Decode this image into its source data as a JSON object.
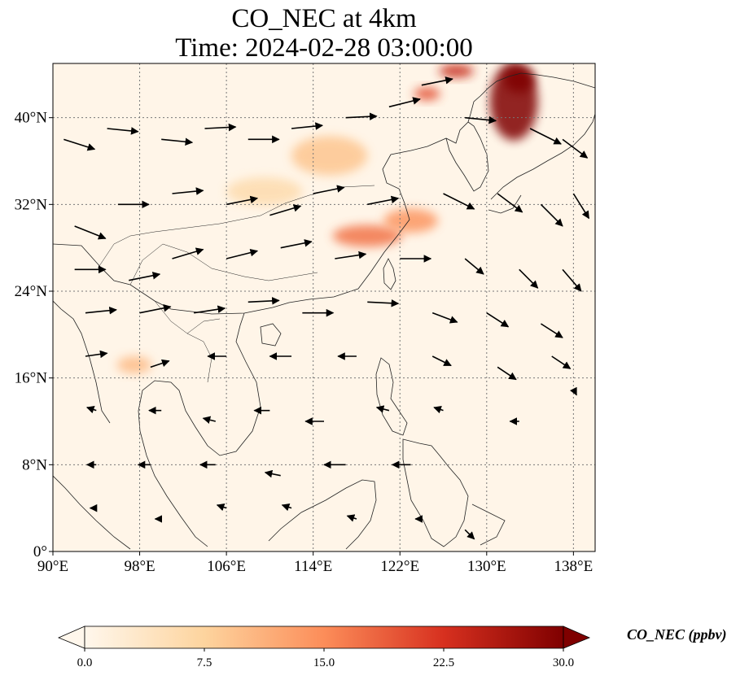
{
  "title": {
    "line1": "CO_NEC at 4km",
    "line2": "Time: 2024-02-28 03:00:00"
  },
  "map": {
    "lon_range": [
      90,
      140
    ],
    "lat_range": [
      0,
      45
    ],
    "lon_ticks": [
      {
        "value": 90,
        "label": "90°E"
      },
      {
        "value": 98,
        "label": "98°E"
      },
      {
        "value": 106,
        "label": "106°E"
      },
      {
        "value": 114,
        "label": "114°E"
      },
      {
        "value": 122,
        "label": "122°E"
      },
      {
        "value": 130,
        "label": "130°E"
      },
      {
        "value": 138,
        "label": "138°E"
      }
    ],
    "lat_ticks": [
      {
        "value": 0,
        "label": "0°"
      },
      {
        "value": 8,
        "label": "8°N"
      },
      {
        "value": 16,
        "label": "16°N"
      },
      {
        "value": 24,
        "label": "24°N"
      },
      {
        "value": 32,
        "label": "32°N"
      },
      {
        "value": 40,
        "label": "40°N"
      }
    ],
    "grid": true,
    "colormap": "OrRd",
    "background_color": "#fff5e8",
    "coastline_color": "#222222",
    "vector_color": "#000000",
    "co_plumes": [
      {
        "lon": 132.5,
        "lat": 41.5,
        "rlon": 2.2,
        "rlat": 3.6,
        "value": 30
      },
      {
        "lon": 133.0,
        "lat": 43.5,
        "rlon": 1.4,
        "rlat": 1.2,
        "value": 30
      },
      {
        "lon": 127.2,
        "lat": 44.3,
        "rlon": 1.6,
        "rlat": 0.6,
        "value": 24
      },
      {
        "lon": 124.5,
        "lat": 42.2,
        "rlon": 1.2,
        "rlat": 0.6,
        "value": 20
      },
      {
        "lon": 119.0,
        "lat": 29.1,
        "rlon": 3.2,
        "rlat": 1.0,
        "value": 17
      },
      {
        "lon": 123.0,
        "lat": 30.5,
        "rlon": 2.5,
        "rlat": 1.1,
        "value": 14
      },
      {
        "lon": 115.5,
        "lat": 36.5,
        "rlon": 3.5,
        "rlat": 1.8,
        "value": 9
      },
      {
        "lon": 109.5,
        "lat": 33.2,
        "rlon": 3.5,
        "rlat": 1.3,
        "value": 6
      },
      {
        "lon": 97.5,
        "lat": 17.2,
        "rlon": 1.6,
        "rlat": 0.8,
        "value": 10
      }
    ],
    "wind_vectors": [
      {
        "lon": 91,
        "lat": 38,
        "u": 1.0,
        "v": -0.32
      },
      {
        "lon": 95,
        "lat": 39,
        "u": 1.0,
        "v": -0.1
      },
      {
        "lon": 100,
        "lat": 38,
        "u": 1.0,
        "v": -0.1
      },
      {
        "lon": 104,
        "lat": 39,
        "u": 1.0,
        "v": 0.05
      },
      {
        "lon": 108,
        "lat": 38,
        "u": 1.0,
        "v": 0.0
      },
      {
        "lon": 112,
        "lat": 39,
        "u": 1.0,
        "v": 0.1
      },
      {
        "lon": 117,
        "lat": 40,
        "u": 1.0,
        "v": 0.05
      },
      {
        "lon": 121,
        "lat": 41,
        "u": 1.0,
        "v": 0.25
      },
      {
        "lon": 124,
        "lat": 43,
        "u": 1.0,
        "v": 0.2
      },
      {
        "lon": 128,
        "lat": 40,
        "u": 1.0,
        "v": -0.1
      },
      {
        "lon": 134,
        "lat": 39,
        "u": 1.0,
        "v": -0.5
      },
      {
        "lon": 137,
        "lat": 38,
        "u": 0.8,
        "v": -0.6
      },
      {
        "lon": 92,
        "lat": 30,
        "u": 1.0,
        "v": -0.4
      },
      {
        "lon": 96,
        "lat": 32,
        "u": 1.0,
        "v": 0.0
      },
      {
        "lon": 101,
        "lat": 33,
        "u": 1.0,
        "v": 0.1
      },
      {
        "lon": 106,
        "lat": 32,
        "u": 1.0,
        "v": 0.2
      },
      {
        "lon": 110,
        "lat": 31,
        "u": 1.0,
        "v": 0.3
      },
      {
        "lon": 114,
        "lat": 33,
        "u": 1.0,
        "v": 0.2
      },
      {
        "lon": 119,
        "lat": 32,
        "u": 1.0,
        "v": 0.2
      },
      {
        "lon": 126,
        "lat": 33,
        "u": 1.0,
        "v": -0.5
      },
      {
        "lon": 131,
        "lat": 33,
        "u": 0.8,
        "v": -0.6
      },
      {
        "lon": 135,
        "lat": 32,
        "u": 0.7,
        "v": -0.7
      },
      {
        "lon": 138,
        "lat": 33,
        "u": 0.5,
        "v": -0.8
      },
      {
        "lon": 92,
        "lat": 26,
        "u": 1.0,
        "v": 0.0
      },
      {
        "lon": 97,
        "lat": 25,
        "u": 1.0,
        "v": 0.2
      },
      {
        "lon": 101,
        "lat": 27,
        "u": 1.0,
        "v": 0.3
      },
      {
        "lon": 106,
        "lat": 27,
        "u": 1.0,
        "v": 0.25
      },
      {
        "lon": 111,
        "lat": 28,
        "u": 1.0,
        "v": 0.2
      },
      {
        "lon": 116,
        "lat": 27,
        "u": 1.0,
        "v": 0.15
      },
      {
        "lon": 122,
        "lat": 27,
        "u": 1.0,
        "v": 0.0
      },
      {
        "lon": 128,
        "lat": 27,
        "u": 0.6,
        "v": -0.5
      },
      {
        "lon": 133,
        "lat": 26,
        "u": 0.6,
        "v": -0.6
      },
      {
        "lon": 137,
        "lat": 26,
        "u": 0.6,
        "v": -0.7
      },
      {
        "lon": 93,
        "lat": 22,
        "u": 1.0,
        "v": 0.1
      },
      {
        "lon": 98,
        "lat": 22,
        "u": 1.0,
        "v": 0.2
      },
      {
        "lon": 103,
        "lat": 22,
        "u": 1.0,
        "v": 0.15
      },
      {
        "lon": 108,
        "lat": 23,
        "u": 1.0,
        "v": 0.05
      },
      {
        "lon": 113,
        "lat": 22,
        "u": 1.0,
        "v": 0.0
      },
      {
        "lon": 119,
        "lat": 23,
        "u": 1.0,
        "v": -0.05
      },
      {
        "lon": 125,
        "lat": 22,
        "u": 0.8,
        "v": -0.3
      },
      {
        "lon": 130,
        "lat": 22,
        "u": 0.7,
        "v": -0.45
      },
      {
        "lon": 135,
        "lat": 21,
        "u": 0.7,
        "v": -0.45
      },
      {
        "lon": 93,
        "lat": 18,
        "u": 0.7,
        "v": 0.1
      },
      {
        "lon": 99,
        "lat": 17,
        "u": 0.6,
        "v": 0.2
      },
      {
        "lon": 106,
        "lat": 18,
        "u": -0.6,
        "v": 0.0
      },
      {
        "lon": 112,
        "lat": 18,
        "u": -0.7,
        "v": 0.0
      },
      {
        "lon": 118,
        "lat": 18,
        "u": -0.6,
        "v": 0.0
      },
      {
        "lon": 125,
        "lat": 18,
        "u": 0.6,
        "v": -0.3
      },
      {
        "lon": 131,
        "lat": 17,
        "u": 0.6,
        "v": -0.4
      },
      {
        "lon": 136,
        "lat": 18,
        "u": 0.6,
        "v": -0.4
      },
      {
        "lon": 94,
        "lat": 13,
        "u": -0.3,
        "v": 0.1
      },
      {
        "lon": 100,
        "lat": 13,
        "u": -0.4,
        "v": 0.0
      },
      {
        "lon": 105,
        "lat": 12,
        "u": -0.4,
        "v": 0.1
      },
      {
        "lon": 110,
        "lat": 13,
        "u": -0.5,
        "v": 0.0
      },
      {
        "lon": 115,
        "lat": 12,
        "u": -0.6,
        "v": 0.0
      },
      {
        "lon": 121,
        "lat": 13,
        "u": -0.4,
        "v": 0.1
      },
      {
        "lon": 126,
        "lat": 13,
        "u": -0.3,
        "v": 0.1
      },
      {
        "lon": 133,
        "lat": 12,
        "u": -0.3,
        "v": 0.0
      },
      {
        "lon": 138,
        "lat": 15,
        "u": 0.1,
        "v": -0.2
      },
      {
        "lon": 94,
        "lat": 8,
        "u": -0.3,
        "v": 0.0
      },
      {
        "lon": 99,
        "lat": 8,
        "u": -0.4,
        "v": 0.0
      },
      {
        "lon": 105,
        "lat": 8,
        "u": -0.5,
        "v": 0.0
      },
      {
        "lon": 111,
        "lat": 7,
        "u": -0.5,
        "v": 0.1
      },
      {
        "lon": 117,
        "lat": 8,
        "u": -0.7,
        "v": 0.0
      },
      {
        "lon": 123,
        "lat": 8,
        "u": -0.6,
        "v": 0.0
      },
      {
        "lon": 94,
        "lat": 4,
        "u": -0.2,
        "v": 0.0
      },
      {
        "lon": 100,
        "lat": 3,
        "u": -0.2,
        "v": 0.0
      },
      {
        "lon": 106,
        "lat": 4,
        "u": -0.3,
        "v": 0.1
      },
      {
        "lon": 112,
        "lat": 4,
        "u": -0.3,
        "v": 0.1
      },
      {
        "lon": 118,
        "lat": 3,
        "u": -0.3,
        "v": 0.1
      },
      {
        "lon": 124,
        "lat": 3,
        "u": -0.2,
        "v": 0.0
      },
      {
        "lon": 128,
        "lat": 2,
        "u": 0.3,
        "v": -0.3
      }
    ]
  },
  "colorbar": {
    "min": 0,
    "max": 30,
    "ticks": [
      {
        "value": 0,
        "label": "0.0"
      },
      {
        "value": 7.5,
        "label": "7.5"
      },
      {
        "value": 15,
        "label": "15.0"
      },
      {
        "value": 22.5,
        "label": "22.5"
      },
      {
        "value": 30,
        "label": "30.0"
      }
    ],
    "stops": [
      "#fff7ec",
      "#fdd49e",
      "#fc8d59",
      "#d7301f",
      "#7f0000"
    ],
    "label": "CO_NEC (ppbv)"
  }
}
